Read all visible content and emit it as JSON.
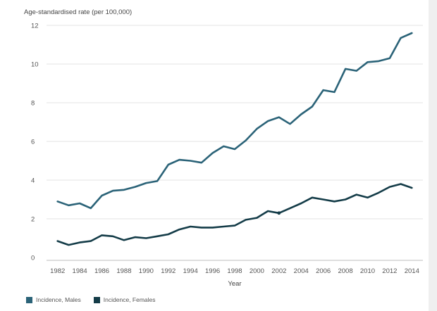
{
  "chart_data": {
    "type": "line",
    "ylabel": "Age-standardised rate (per 100,000)",
    "xlabel": "Year",
    "x": [
      1982,
      1983,
      1984,
      1985,
      1986,
      1987,
      1988,
      1989,
      1990,
      1991,
      1992,
      1993,
      1994,
      1995,
      1996,
      1997,
      1998,
      1999,
      2000,
      2001,
      2002,
      2003,
      2004,
      2005,
      2006,
      2007,
      2008,
      2009,
      2010,
      2011,
      2012,
      2013,
      2014
    ],
    "xticks": [
      1982,
      1984,
      1986,
      1988,
      1990,
      1992,
      1994,
      1996,
      1998,
      2000,
      2002,
      2004,
      2006,
      2008,
      2010,
      2012,
      2014
    ],
    "yticks": [
      0,
      2,
      4,
      6,
      8,
      10,
      12
    ],
    "ylim": [
      0,
      12
    ],
    "xlim": [
      1981,
      2015
    ],
    "grid": "horizontal",
    "legend_position": "bottom-left",
    "series": [
      {
        "name": "Incidence, Males",
        "color": "#2b6378",
        "values": [
          2.9,
          2.7,
          2.8,
          2.55,
          3.2,
          3.45,
          3.5,
          3.65,
          3.85,
          3.95,
          4.8,
          5.05,
          5.0,
          4.9,
          5.4,
          5.75,
          5.6,
          6.05,
          6.65,
          7.05,
          7.25,
          6.9,
          7.4,
          7.8,
          8.65,
          8.55,
          9.75,
          9.65,
          10.1,
          10.15,
          10.3,
          11.35,
          11.6
        ]
      },
      {
        "name": "Incidence, Females",
        "color": "#143c48",
        "values": [
          0.85,
          0.65,
          0.78,
          0.85,
          1.15,
          1.1,
          0.9,
          1.05,
          1.0,
          1.1,
          1.2,
          1.45,
          1.6,
          1.55,
          1.55,
          1.6,
          1.65,
          1.95,
          2.05,
          2.4,
          2.3,
          2.55,
          2.8,
          3.1,
          3.0,
          2.9,
          3.0,
          3.25,
          3.1,
          3.35,
          3.65,
          3.8,
          3.6
        ]
      }
    ]
  }
}
